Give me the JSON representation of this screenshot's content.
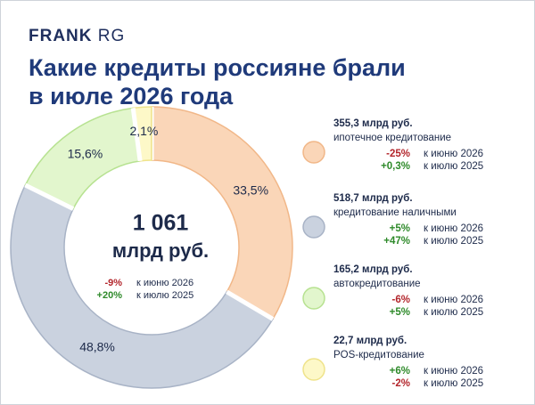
{
  "brand": [
    "FRANK",
    "RG"
  ],
  "chart_data": {
    "type": "pie",
    "title": [
      "Какие кредиты россияне брали",
      "в июле 2026 года"
    ],
    "categories": [
      "ипотечное кредитование",
      "кредитование наличными",
      "автокредитование",
      "POS-кредитование"
    ],
    "values": [
      33.5,
      48.8,
      15.6,
      2.1
    ],
    "value_labels": [
      "33,5%",
      "48,8%",
      "15,6%",
      "2,1%"
    ],
    "colors": [
      "#fad6b8",
      "#cad2df",
      "#e2f6cd",
      "#fdf8c8"
    ],
    "edge_colors": [
      "#f1b788",
      "#a8b3c6",
      "#b7e291",
      "#efe38b"
    ],
    "total": "1 061",
    "total_unit": "млрд руб.",
    "total_changes": [
      {
        "change": "-9%",
        "period": "к июню 2026"
      },
      {
        "change": "+20%",
        "period": "к июлю 2025"
      }
    ],
    "details": [
      {
        "amount": "355,3 млрд руб.",
        "changes": [
          {
            "change": "-25%",
            "period": "к июню 2026"
          },
          {
            "change": "+0,3%",
            "period": "к июлю 2025"
          }
        ]
      },
      {
        "amount": "518,7 млрд руб.",
        "changes": [
          {
            "change": "+5%",
            "period": "к июню 2026"
          },
          {
            "change": "+47%",
            "period": "к июлю 2025"
          }
        ]
      },
      {
        "amount": "165,2 млрд руб.",
        "changes": [
          {
            "change": "-6%",
            "period": "к июню 2026"
          },
          {
            "change": "+5%",
            "period": "к июлю 2025"
          }
        ]
      },
      {
        "amount": "22,7 млрд руб.",
        "changes": [
          {
            "change": "+6%",
            "period": "к июню 2026"
          },
          {
            "change": "-2%",
            "period": "к июлю 2025"
          }
        ]
      }
    ]
  }
}
